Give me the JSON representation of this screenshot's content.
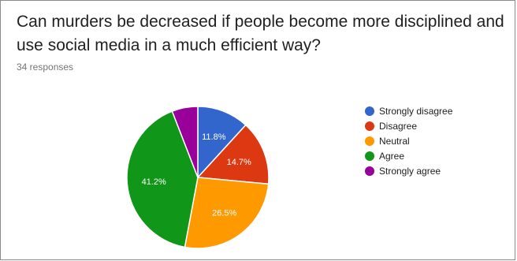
{
  "question": {
    "title": "Can murders be decreased if people become more disciplined and use social media in a much efficient way?",
    "responses": "34 responses"
  },
  "chart_data": {
    "type": "pie",
    "title": "",
    "start_angle_deg": 0,
    "direction": "clockwise",
    "slices": [
      {
        "label": "Strongly disagree",
        "value": 11.8,
        "display": "11.8%",
        "color": "#3366cc"
      },
      {
        "label": "Disagree",
        "value": 14.7,
        "display": "14.7%",
        "color": "#dc3912"
      },
      {
        "label": "Neutral",
        "value": 26.5,
        "display": "26.5%",
        "color": "#ff9900"
      },
      {
        "label": "Agree",
        "value": 41.2,
        "display": "41.2%",
        "color": "#109618"
      },
      {
        "label": "Strongly agree",
        "value": 5.9,
        "display": "",
        "color": "#990099"
      }
    ],
    "legend_position": "right"
  }
}
